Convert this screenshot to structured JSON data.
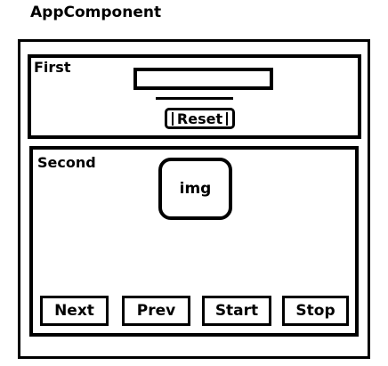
{
  "app": {
    "title": "AppComponent"
  },
  "first": {
    "label": "First",
    "input_value": "",
    "reset_label": "Reset"
  },
  "second": {
    "label": "Second",
    "image_label": "img",
    "buttons": {
      "next": "Next",
      "prev": "Prev",
      "start": "Start",
      "stop": "Stop"
    }
  }
}
